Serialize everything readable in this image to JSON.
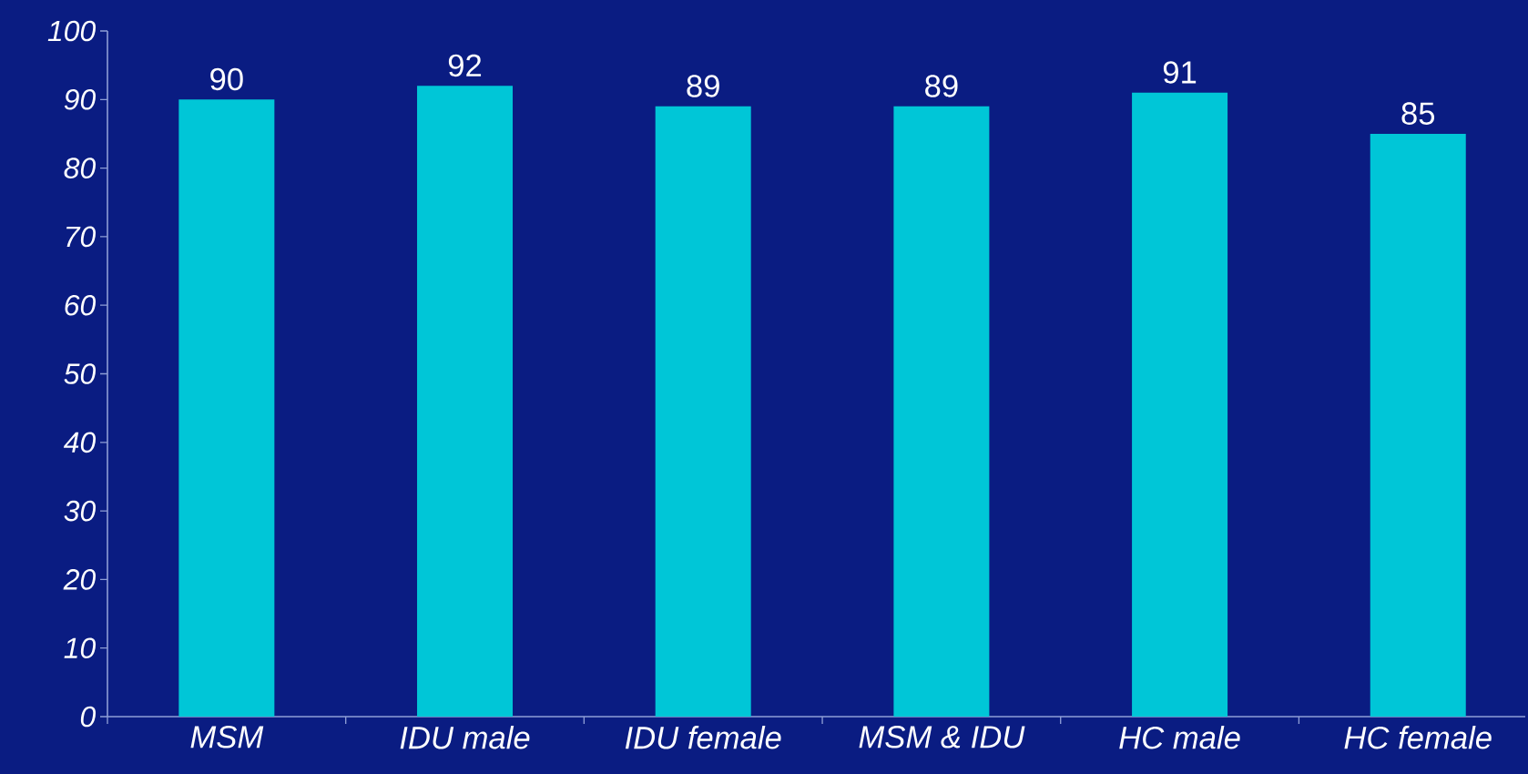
{
  "chart_data": {
    "type": "bar",
    "categories": [
      "MSM",
      "IDU male",
      "IDU female",
      "MSM & IDU",
      "HC male",
      "HC female"
    ],
    "values": [
      90,
      92,
      89,
      89,
      91,
      85
    ],
    "color": "#00c6d7",
    "ylim": [
      0,
      100
    ],
    "yticks": [
      0,
      10,
      20,
      30,
      40,
      50,
      60,
      70,
      80,
      90,
      100
    ],
    "data_labels": true
  }
}
